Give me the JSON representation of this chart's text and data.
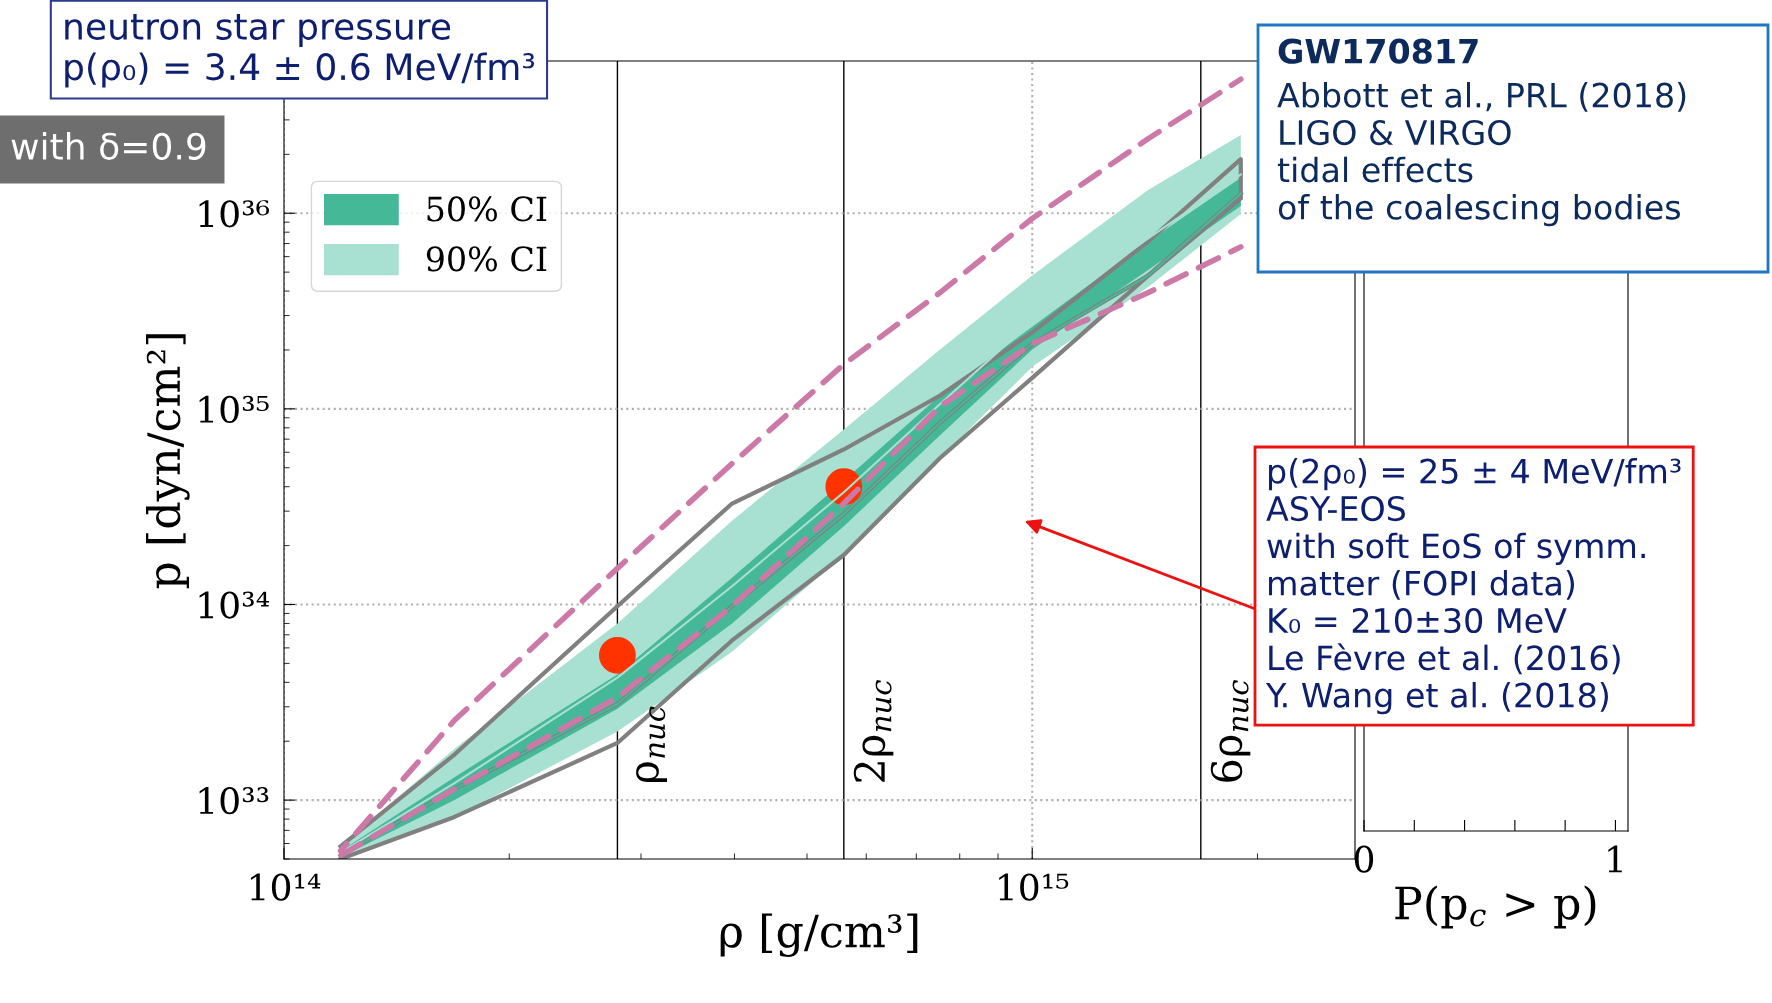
{
  "chart_data": [
    {
      "type": "line",
      "xlabel": "ρ [g/cm³]",
      "ylabel": "p [dyn/cm²]",
      "log": "xy",
      "xlim": [
        100000000000000.0,
        2700000000000000.0
      ],
      "xticks": [
        {
          "value": 100000000000000.0,
          "label": "10¹⁴"
        },
        {
          "value": 1000000000000000.0,
          "label": "10¹⁵"
        }
      ],
      "ylim": [
        5e+32,
        6e+36
      ],
      "yticks": [
        {
          "value": 1e+33,
          "label": "10³³"
        },
        {
          "value": 1e+34,
          "label": "10³⁴"
        },
        {
          "value": 1e+35,
          "label": "10³⁵"
        },
        {
          "value": 1e+36,
          "label": "10³⁶"
        }
      ],
      "grid": true,
      "legend": "top left",
      "x": [
        119000000000000.0,
        169000000000000.0,
        279000000000000.0,
        397000000000000.0,
        560000000000000.0,
        753000000000000.0,
        1000000000000000.0,
        1430000000000000.0,
        1900000000000000.0
      ],
      "series": [
        {
          "name": "90% CI",
          "type": "line",
          "color": "#a8e0d1",
          "values": [
            5.39e+32,
            1.22e+33,
            4.23e+33,
            1.24e+34,
            3.75e+34,
            1.06e+35,
            2.81e+35,
            7.45e+35,
            1.58e+36
          ],
          "lower": [
            5e+32,
            8.2e+32,
            2.24e+33,
            5.73e+33,
            1.79e+34,
            5.61e+34,
            1.64e+35,
            4.21e+35,
            9.9e+35
          ],
          "upper": [
            5.8e+32,
            1.83e+33,
            8e+33,
            2.68e+34,
            7.85e+34,
            2.01e+35,
            4.81e+35,
            1.32e+36,
            2.51e+36
          ]
        },
        {
          "name": "50% CI",
          "type": "line",
          "color": "#45b898",
          "values": [
            5.2e+32,
            1.14e+33,
            3.1e+33,
            9.8e+33,
            2.9e+34,
            8.5e+34,
            2.15e+35,
            4.81e+35,
            1.26e+36
          ],
          "lower": [
            5.1e+32,
            1e+33,
            2.93e+33,
            8e+33,
            2.51e+34,
            7.34e+34,
            2.01e+35,
            5.14e+35,
            1.09e+36
          ],
          "upper": [
            5.5e+32,
            1.31e+33,
            4.38e+33,
            1.37e+34,
            4.29e+34,
            1.17e+35,
            2.63e+35,
            7.19e+35,
            1.52e+36
          ]
        },
        {
          "type": "line",
          "color": "#808080",
          "line_style": "solid",
          "values": [
            5.2e+32,
            1.14e+33,
            3.1e+33,
            9.8e+33,
            2.9e+34,
            8.5e+34,
            2.15e+35,
            4.81e+35,
            1.26e+36
          ]
        },
        {
          "type": "line",
          "color": "#808080",
          "line_style": "solid",
          "x": [
            119000000000000.0,
            169000000000000.0,
            279000000000000.0,
            397000000000000.0,
            560000000000000.0,
            753000000000000.0,
            1000000000000000.0,
            1430000000000000.0,
            1900000000000000.0,
            1900000000000000.0,
            1430000000000000.0,
            1000000000000000.0,
            753000000000000.0,
            560000000000000.0,
            397000000000000.0,
            279000000000000.0,
            169000000000000.0,
            119000000000000.0
          ],
          "values": [
            5.8e+32,
            1.71e+33,
            9.8e+33,
            3.28e+34,
            6.2e+34,
            1.17e+35,
            2.46e+35,
            7.19e+35,
            1.89e+36,
            1.19e+36,
            4.81e+35,
            1.44e+35,
            5.61e+34,
            1.79e+34,
            6.55e+33,
            1.96e+33,
            8.2e+32,
            5e+32
          ]
        },
        {
          "type": "line",
          "color": "#cc79a7",
          "line_style": "dashed",
          "values": [
            5.5e+32,
            2.56e+33,
            1.53e+34,
            5.25e+34,
            1.69e+35,
            3.93e+35,
            9.4e+35,
            2.41e+36,
            4.84e+36
          ]
        },
        {
          "type": "line",
          "color": "#cc79a7",
          "line_style": "dashed",
          "values": [
            5.2e+32,
            1.14e+33,
            3.35e+33,
            9.8e+33,
            3.28e+34,
            1.03e+35,
            2.15e+35,
            3.93e+35,
            6.73e+35
          ]
        },
        {
          "type": "scatter",
          "color": "#ff3300",
          "marker": "circle",
          "x": [
            279000000000000.0,
            560000000000000.0
          ],
          "values": [
            5.5e+33,
            4e+34
          ]
        }
      ],
      "ref_lines": [
        {
          "axis": "x",
          "value": 279000000000000.0,
          "label": "ρ$_{nuc}$",
          "color": "#000000"
        },
        {
          "axis": "x",
          "value": 560000000000000.0,
          "label": "2ρ$_{nuc}$",
          "color": "#000000"
        },
        {
          "axis": "x",
          "value": 1680000000000000.0,
          "label": "6ρ$_{nuc}$",
          "color": "#000000"
        }
      ],
      "annotations": [
        "neutron star pressure\np(ρ₀) = 3.4 ± 0.6 MeV/fm³",
        "with δ=0.9",
        "GW170817",
        "Abbott et al., PRL (2018)\nLIGO & VIRGO\ntidal effects\nof the coalescing bodies",
        "p(2ρ₀) = 25 ± 4 MeV/fm³\nASY-EOS\nwith soft EoS of symm.\nmatter (FOPI data)\nK₀ = 210±30 MeV\nLe Fèvre et al. (2016)\nY. Wang et al. (2018)"
      ]
    },
    {
      "type": "other",
      "xlabel": "P(p$_{c}$ > p)",
      "categories": [
        "0",
        null,
        null,
        null,
        null,
        "1"
      ]
    }
  ]
}
